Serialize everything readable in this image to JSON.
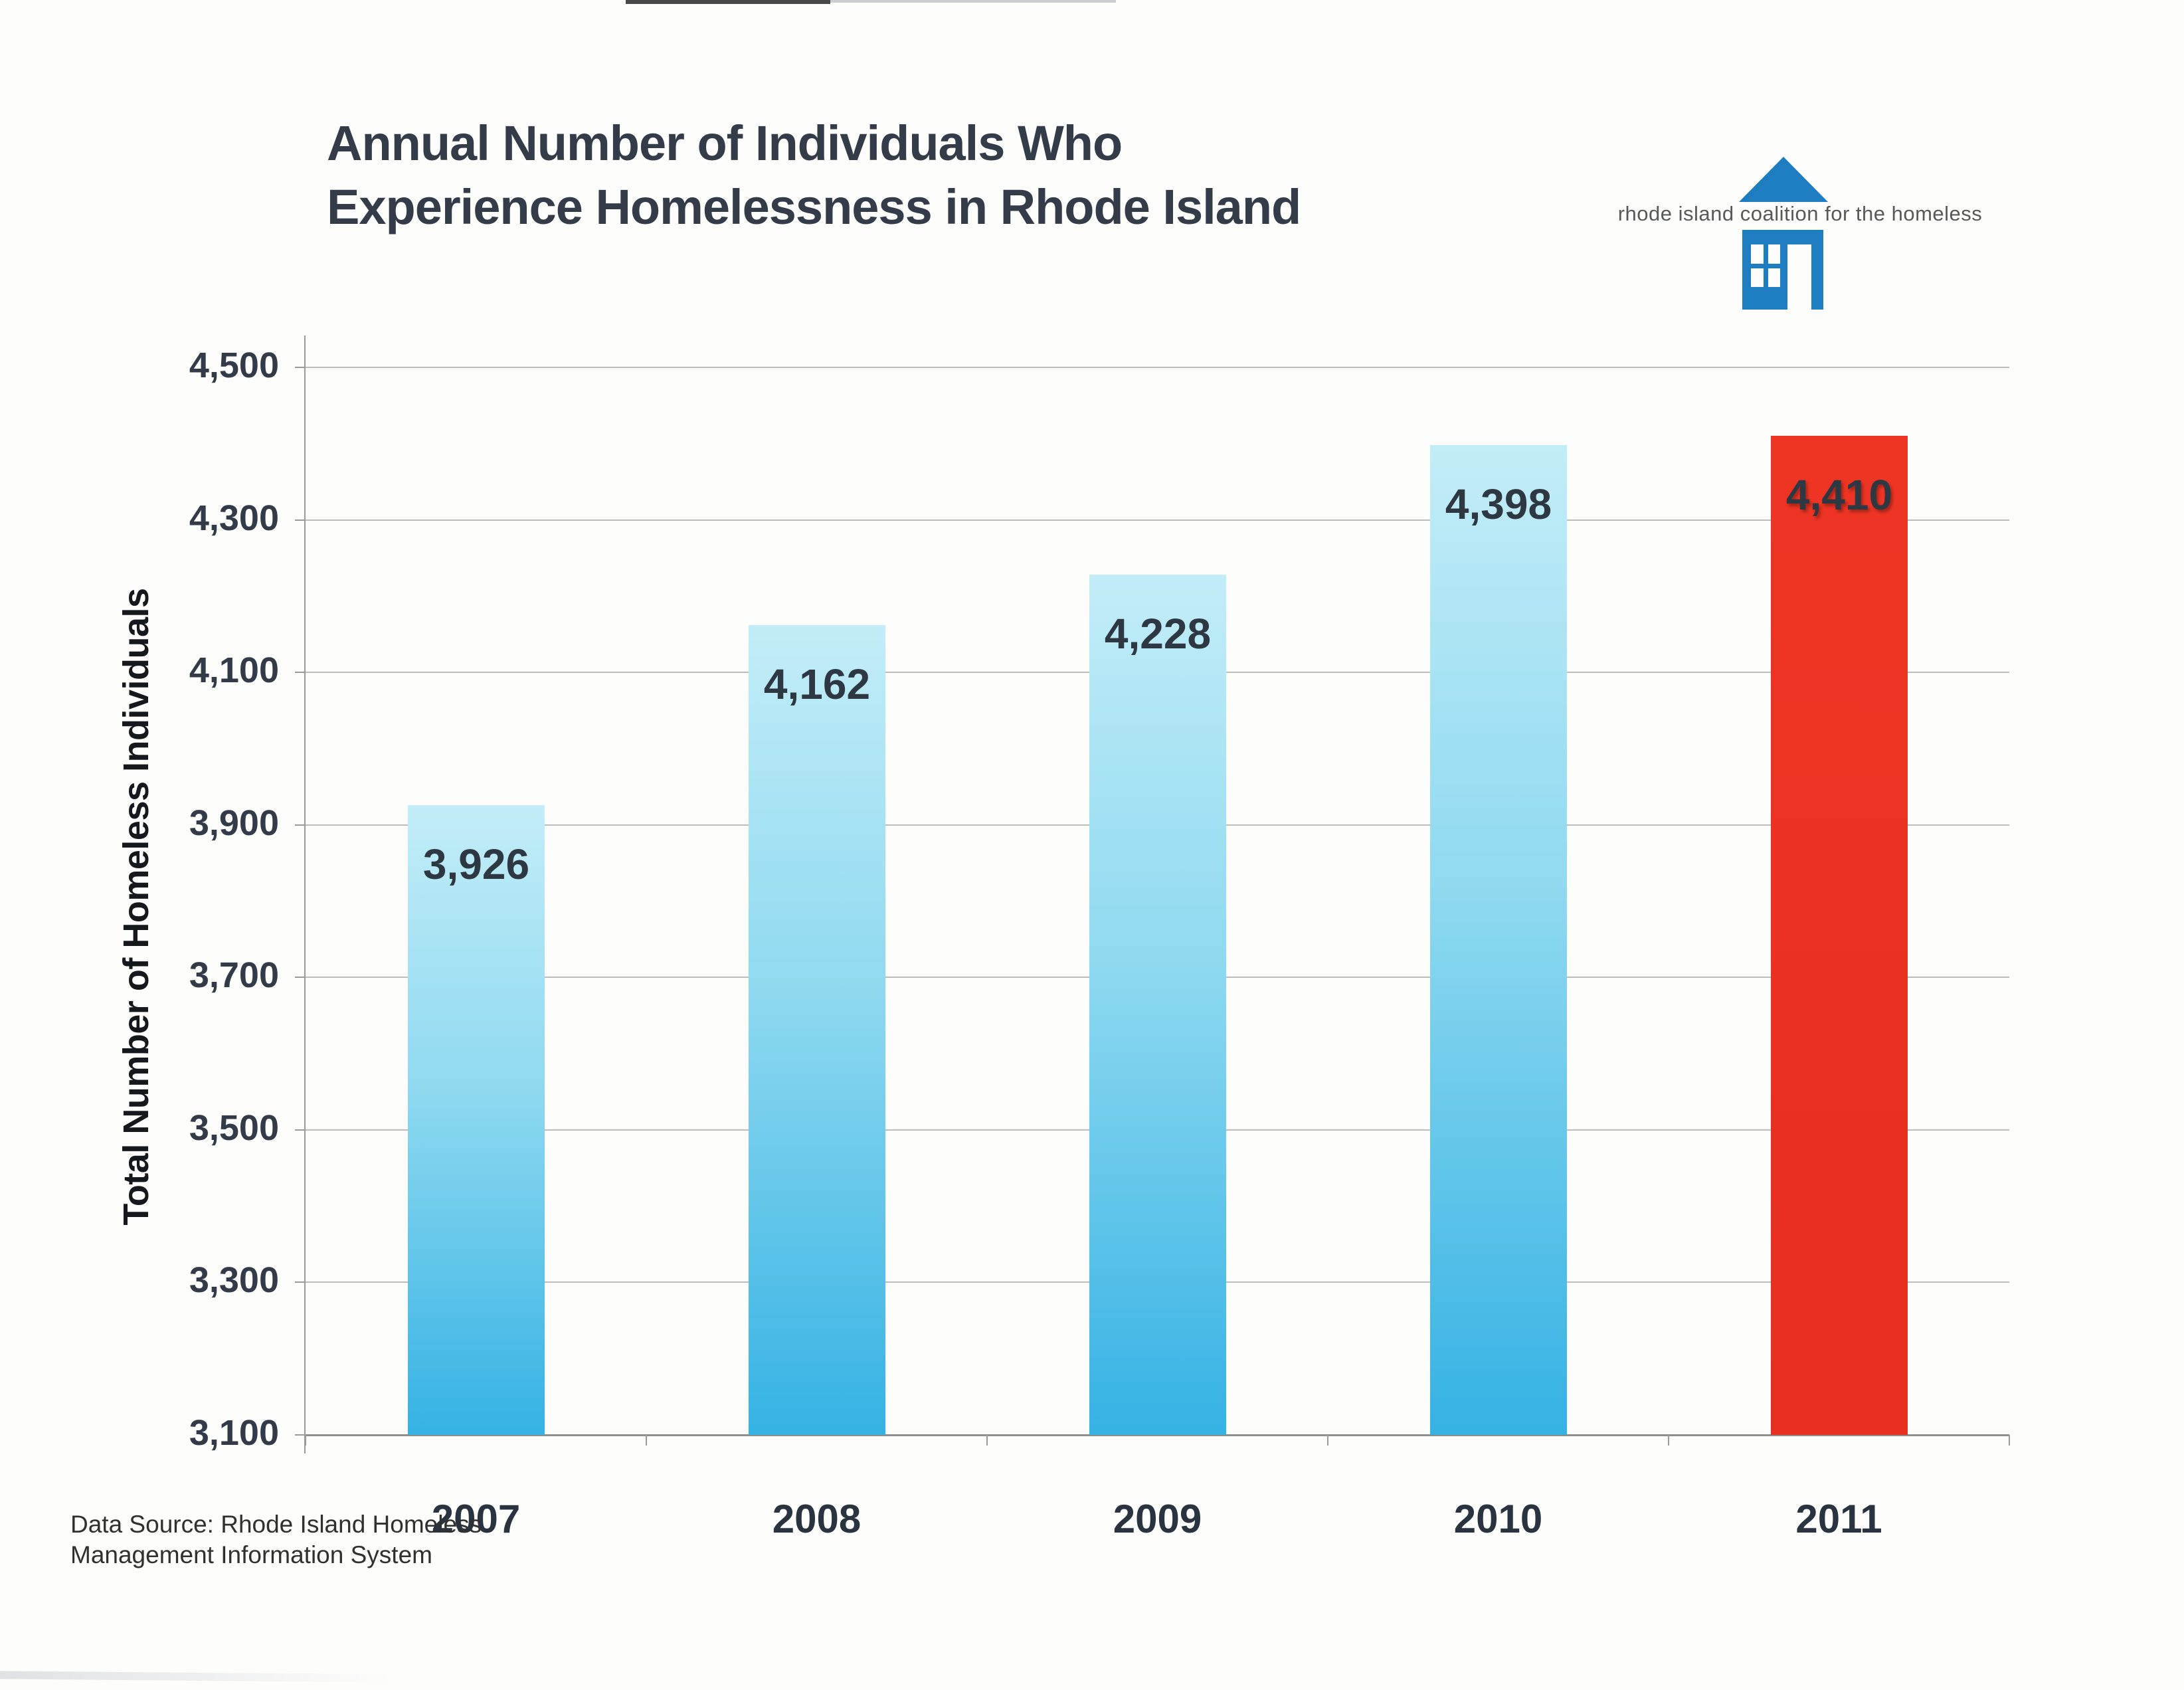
{
  "page": {
    "title_line1": "Annual Number of Individuals Who",
    "title_line2": "Experience Homelessness in Rhode Island",
    "source_line1": "Data Source: Rhode Island Homeless",
    "source_line2": "Management Information System"
  },
  "logo": {
    "icon": "house-icon",
    "text": "rhode island coalition for the homeless",
    "house_color": "#1E7DC1",
    "text_color": "#58595B"
  },
  "chart_data": {
    "type": "bar",
    "title": "Annual Number of Individuals Who Experience Homelessness in Rhode Island",
    "categories": [
      "2007",
      "2008",
      "2009",
      "2010",
      "2011"
    ],
    "values": [
      3926,
      4162,
      4228,
      4398,
      4410
    ],
    "value_labels": [
      "3,926",
      "4,162",
      "4,228",
      "4,398",
      "4,410"
    ],
    "xlabel": "",
    "ylabel": "Total Number of Homeless Individuals",
    "ylim": [
      3100,
      4500
    ],
    "ytick_step": 200,
    "ytick_labels": [
      "3,100",
      "3,300",
      "3,500",
      "3,700",
      "3,900",
      "4,100",
      "4,300",
      "4,500"
    ],
    "grid": true,
    "legend": false,
    "bar_style": {
      "gradient_top": "#C3EDF8",
      "gradient_mid": "#8FD9F0",
      "gradient_bottom": "#35B2E4",
      "highlight_index": 4,
      "highlight_color": "#EE3524",
      "highlight_color_dark": "#E72E1F"
    }
  }
}
